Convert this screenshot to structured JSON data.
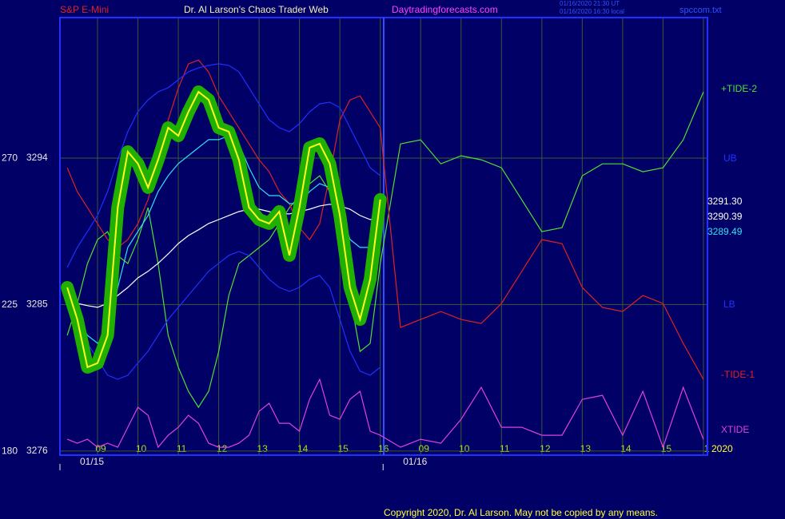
{
  "header": {
    "left": "S&P E-Mini",
    "center": "Dr. Al Larson's Chaos Trader Web",
    "site": "Daytradingforecasts.com",
    "stamp_ut": "01/16/2020 21:30 UT",
    "stamp_local": "01/16/2020 16:30 local",
    "file": "spccom.txt"
  },
  "footer": "Copyright 2020, Dr. Al Larson. May not be copied by any means.",
  "chart_data": {
    "type": "line",
    "x": [
      0.25,
      0.5,
      0.75,
      1,
      1.25,
      1.5,
      1.75,
      2,
      2.25,
      2.5,
      2.75,
      3,
      3.25,
      3.5,
      3.75,
      4,
      4.25,
      4.5,
      4.75,
      5,
      5.25,
      5.5,
      5.75,
      6,
      6.25,
      6.5,
      6.75,
      7,
      7.25,
      7.5,
      7.75,
      8,
      8.5,
      9,
      9.5,
      10,
      10.5,
      11,
      11.5,
      12,
      12.5,
      13,
      13.5,
      14,
      14.5,
      15,
      15.5,
      16
    ],
    "xlim": [
      0.07,
      16.1
    ],
    "xticks": [
      {
        "value": 1,
        "label": "09"
      },
      {
        "value": 2,
        "label": "10"
      },
      {
        "value": 3,
        "label": "11"
      },
      {
        "value": 4,
        "label": "12"
      },
      {
        "value": 5,
        "label": "13"
      },
      {
        "value": 6,
        "label": "14"
      },
      {
        "value": 7,
        "label": "15"
      },
      {
        "value": 8,
        "label": "16"
      },
      {
        "value": 9,
        "label": "09"
      },
      {
        "value": 10,
        "label": "10"
      },
      {
        "value": 11,
        "label": "11"
      },
      {
        "value": 12,
        "label": "12"
      },
      {
        "value": 13,
        "label": "13"
      },
      {
        "value": 14,
        "label": "14"
      },
      {
        "value": 15,
        "label": "15"
      },
      {
        "value": 16,
        "label": "1"
      }
    ],
    "xdates": [
      {
        "value": 1,
        "label": "01/15"
      },
      {
        "value": 9,
        "label": "01/16"
      }
    ],
    "ylim": [
      3275.75,
      3302.63
    ],
    "yticks": [
      3276,
      3285,
      3294
    ],
    "y2lim": [
      178.8,
      313.2
    ],
    "y2ticks": [
      180,
      225,
      270
    ],
    "grid": true,
    "series": [
      {
        "name": "+TIDE-2",
        "color": "#50e030",
        "axis": "y2",
        "values": [
          215.56,
          225.37,
          237.63,
          244.99,
          247.44,
          240.08,
          237.63,
          244.99,
          254.8,
          237.63,
          215.56,
          205.75,
          198.4,
          193.49,
          198.4,
          210.66,
          227.82,
          237.63,
          240.08,
          242.53,
          244.99,
          249.89,
          254.8,
          258.47,
          262.15,
          264.61,
          259.7,
          244.99,
          227.82,
          210.66,
          213.11,
          237.63,
          274.41,
          275.64,
          268.28,
          270.74,
          269.51,
          267.06,
          257.25,
          247.44,
          248.67,
          264.61,
          268.28,
          268.28,
          265.83,
          267.06,
          275.64,
          290.35
        ]
      },
      {
        "name": "-TIDE-1",
        "color": "#e02020",
        "axis": "y2",
        "values": [
          267.06,
          259.7,
          254.8,
          249.89,
          244.99,
          242.53,
          244.99,
          249.89,
          257.25,
          269.51,
          281.77,
          291.58,
          298.94,
          300.16,
          296.48,
          289.13,
          284.22,
          279.32,
          274.41,
          269.51,
          265.83,
          259.7,
          256.02,
          248.67,
          244.99,
          249.89,
          264.61,
          281.77,
          287.9,
          289.13,
          284.22,
          279.32,
          218.01,
          220.47,
          222.92,
          220.47,
          219.24,
          225.37,
          235.18,
          244.99,
          243.76,
          230.27,
          224.14,
          222.92,
          227.82,
          225.37,
          213.11,
          202.07
        ]
      },
      {
        "name": "XTIDE",
        "color": "#e040e0",
        "axis": "y2",
        "values": [
          183.68,
          182.46,
          183.68,
          181.23,
          182.46,
          181.23,
          187.36,
          193.49,
          191.04,
          181.23,
          184.91,
          187.36,
          191.04,
          188.59,
          182.46,
          181.23,
          181.23,
          182.46,
          184.91,
          192.27,
          194.72,
          188.59,
          188.59,
          186.14,
          195.95,
          202.07,
          191.04,
          189.81,
          195.95,
          198.4,
          186.14,
          184.91,
          181.23,
          183.68,
          182.46,
          189.81,
          199.62,
          187.36,
          187.36,
          184.91,
          184.91,
          195.95,
          197.17,
          184.91,
          198.4,
          181.23,
          199.62,
          183.68
        ]
      },
      {
        "name": "UB",
        "color": "#2030ff",
        "values": [
          3287.28,
          3288.51,
          3289.49,
          3290.47,
          3291.94,
          3293.9,
          3295.62,
          3296.84,
          3297.58,
          3298.07,
          3298.32,
          3298.81,
          3299.3,
          3299.54,
          3299.69,
          3299.79,
          3299.69,
          3299.3,
          3298.32,
          3297.33,
          3296.35,
          3295.86,
          3295.62,
          3296.11,
          3296.84,
          3297.33,
          3297.43,
          3297.09,
          3295.86,
          3294.64,
          3293.41,
          3292.92,
          null,
          null,
          null,
          null,
          null,
          null,
          null,
          null,
          null,
          null,
          null,
          null,
          null,
          null,
          null,
          null
        ]
      },
      {
        "name": "LB",
        "color": "#2030ff",
        "values": [
          3285.56,
          3284.09,
          3282.62,
          3281.64,
          3280.66,
          3280.41,
          3280.66,
          3281.4,
          3282.13,
          3283.11,
          3284.09,
          3284.83,
          3285.56,
          3286.3,
          3287.04,
          3287.53,
          3288.02,
          3288.26,
          3288.02,
          3287.28,
          3286.55,
          3286.05,
          3285.81,
          3286.05,
          3286.55,
          3286.79,
          3286.05,
          3284.09,
          3282.13,
          3280.91,
          3280.66,
          3281.15,
          null,
          null,
          null,
          null,
          null,
          null,
          null,
          null,
          null,
          null,
          null,
          null,
          null,
          null,
          null,
          null
        ]
      },
      {
        "color": "#ffffff",
        "values": [
          3285.56,
          3285.07,
          3284.93,
          3284.83,
          3285.07,
          3285.56,
          3286.05,
          3286.64,
          3287.04,
          3287.53,
          3288.11,
          3288.75,
          3289.24,
          3289.59,
          3289.98,
          3290.22,
          3290.47,
          3290.71,
          3290.86,
          3290.86,
          3290.71,
          3290.57,
          3290.57,
          3290.71,
          3290.86,
          3291.06,
          3291.16,
          3291.06,
          3290.86,
          3290.47,
          3290.22,
          3290.37,
          null,
          null,
          null,
          null,
          null,
          null,
          null,
          null,
          null,
          null,
          null,
          null,
          null,
          null,
          null,
          null
        ]
      },
      {
        "color": "#30e0f0",
        "values": [
          3284.83,
          3284.09,
          3283.11,
          3282.62,
          3283.11,
          3286.05,
          3288.51,
          3289.49,
          3290.47,
          3291.94,
          3292.92,
          3293.66,
          3294.15,
          3294.64,
          3295.13,
          3295.13,
          3295.37,
          3294.88,
          3293.41,
          3292.19,
          3291.69,
          3291.69,
          3291.2,
          3291.2,
          3291.94,
          3292.43,
          3292.19,
          3290.96,
          3289.0,
          3288.51,
          3288.51,
          3289.24,
          null,
          null,
          null,
          null,
          null,
          null,
          null,
          null,
          null,
          null,
          null,
          null,
          null,
          null,
          null,
          null
        ]
      },
      {
        "color": "#ffff20",
        "halo_color": "#20b000",
        "values": [
          3286.05,
          3284.09,
          3281.15,
          3281.4,
          3283.11,
          3290.96,
          3294.39,
          3293.66,
          3292.19,
          3293.9,
          3295.86,
          3295.37,
          3296.84,
          3298.07,
          3297.58,
          3295.86,
          3295.62,
          3293.9,
          3290.96,
          3290.22,
          3289.98,
          3290.71,
          3288.02,
          3290.96,
          3294.64,
          3294.88,
          3293.66,
          3290.47,
          3286.05,
          3284.09,
          3286.55,
          3291.45,
          null,
          null,
          null,
          null,
          null,
          null,
          null,
          null,
          null,
          null,
          null,
          null,
          null,
          null,
          null,
          null
        ]
      }
    ],
    "annotations": [
      "3291.30",
      "3290.39",
      "3289.49",
      "2020"
    ]
  }
}
